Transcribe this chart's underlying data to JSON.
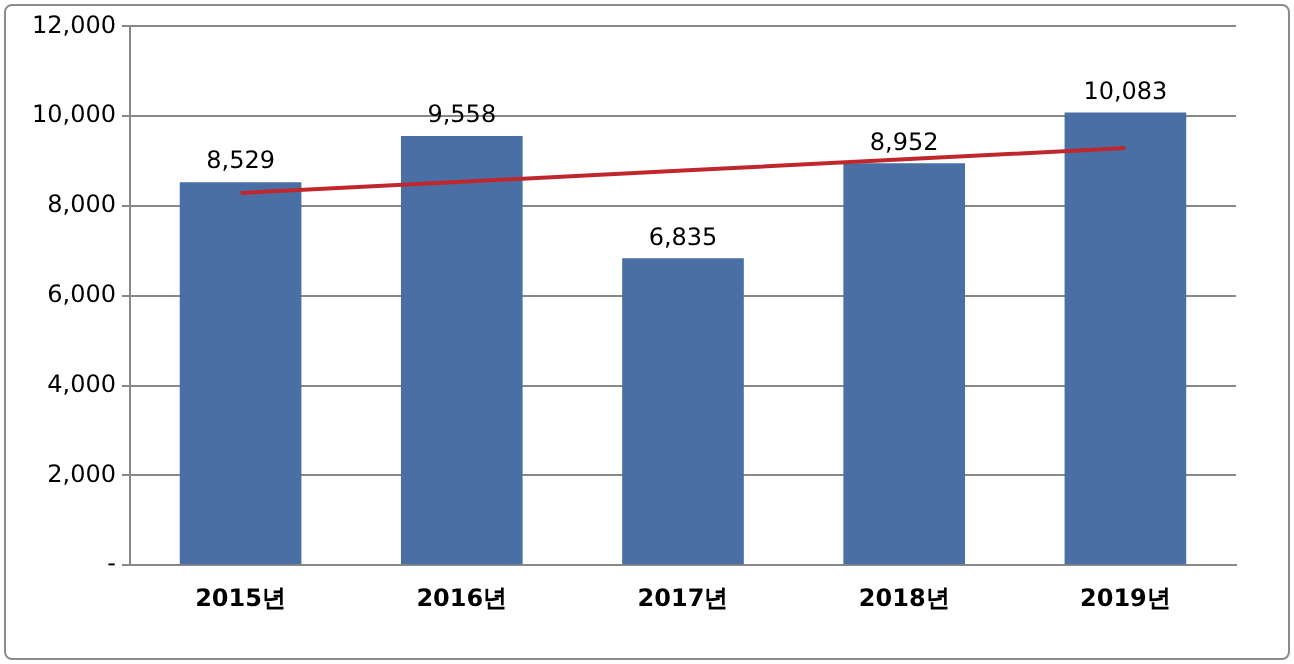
{
  "chart_data": {
    "type": "bar",
    "categories": [
      "2015년",
      "2016년",
      "2017년",
      "2018년",
      "2019년"
    ],
    "series": [
      {
        "color": "#4a6fa5",
        "values": [
          8529,
          9558,
          6835,
          8952,
          10083
        ],
        "value_labels": [
          "8,529",
          "9,558",
          "6,835",
          "8,952",
          "10,083"
        ]
      },
      {
        "type": "line",
        "color": "#c0272d",
        "values": [
          8290,
          8540,
          8790,
          9040,
          9290
        ]
      }
    ],
    "ylim": [
      0,
      12000
    ],
    "yticks": [
      {
        "value": 0,
        "label": "-"
      },
      {
        "value": 2000,
        "label": "2,000"
      },
      {
        "value": 4000,
        "label": "4,000"
      },
      {
        "value": 6000,
        "label": "6,000"
      },
      {
        "value": 8000,
        "label": "8,000"
      },
      {
        "value": 10000,
        "label": "10,000"
      },
      {
        "value": 12000,
        "label": "12,000"
      }
    ],
    "grid": "y",
    "legend": false,
    "marker": "none"
  }
}
